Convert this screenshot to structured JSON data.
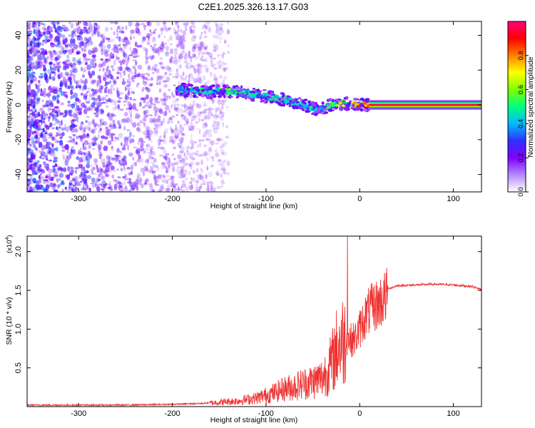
{
  "title": "C2E1.2025.326.13.17.G03",
  "colorbar": {
    "label": "Normalized spectral amplitude",
    "ticks": [
      {
        "v": 0.0,
        "label": "0.0"
      },
      {
        "v": 0.2,
        "label": "0.2"
      },
      {
        "v": 0.4,
        "label": "0.4"
      },
      {
        "v": 0.6,
        "label": "0.6"
      },
      {
        "v": 0.8,
        "label": "0.8"
      }
    ],
    "range": [
      0,
      1
    ],
    "colors": [
      "#ffffff",
      "#b388ff",
      "#8000ff",
      "#3030ff",
      "#00bbff",
      "#00ff80",
      "#80ff00",
      "#ffff00",
      "#ff8000",
      "#ff0000",
      "#ff0080"
    ]
  },
  "chart_data": [
    {
      "type": "heatmap",
      "xlabel": "Height of straight line (km)",
      "ylabel": "Frequency (Hz)",
      "xlim": [
        -355,
        130
      ],
      "ylim": [
        -50,
        48
      ],
      "xticks": [
        {
          "v": -300,
          "label": "-300"
        },
        {
          "v": -200,
          "label": "-200"
        },
        {
          "v": -100,
          "label": "-100"
        },
        {
          "v": 0,
          "label": "0"
        },
        {
          "v": 100,
          "label": "100"
        }
      ],
      "yticks": [
        {
          "v": -40,
          "label": "-40"
        },
        {
          "v": -20,
          "label": "-20"
        },
        {
          "v": 0,
          "label": "0"
        },
        {
          "v": 20,
          "label": "20"
        },
        {
          "v": 40,
          "label": "40"
        }
      ],
      "ridge": {
        "x": [
          -195,
          -180,
          -160,
          -140,
          -120,
          -100,
          -80,
          -60,
          -45,
          -30,
          -20,
          -10,
          0,
          10,
          130
        ],
        "y": [
          9,
          8,
          7.5,
          8,
          6.5,
          5,
          3,
          0,
          -3,
          0,
          1,
          0.5,
          0,
          0,
          0
        ],
        "amplitude": [
          0.45,
          0.5,
          0.5,
          0.55,
          0.45,
          0.45,
          0.5,
          0.45,
          0.4,
          0.5,
          0.6,
          0.7,
          0.75,
          0.9,
          0.95
        ]
      },
      "tone_band": {
        "x_start": 10,
        "x_end": 130,
        "frequency": 0,
        "amplitude": 0.95
      }
    },
    {
      "type": "line",
      "xlabel": "Height of straight line (km)",
      "ylabel": "SNR (10 * v/v)",
      "y_multiplier_label": "(x10",
      "y_multiplier_exp": "4",
      "y_multiplier_close": ")",
      "xlim": [
        -355,
        130
      ],
      "ylim": [
        0,
        2.2
      ],
      "xticks": [
        {
          "v": -300,
          "label": "-300"
        },
        {
          "v": -200,
          "label": "-200"
        },
        {
          "v": -100,
          "label": "-100"
        },
        {
          "v": 0,
          "label": "0"
        },
        {
          "v": 100,
          "label": "100"
        }
      ],
      "yticks": [
        {
          "v": 0.5,
          "label": "0.5"
        },
        {
          "v": 1.0,
          "label": "1.0"
        },
        {
          "v": 1.5,
          "label": "1.5"
        },
        {
          "v": 2.0,
          "label": "2.0"
        }
      ],
      "series": [
        {
          "color": "#ee3333",
          "x": [
            -355,
            -300,
            -250,
            -200,
            -170,
            -150,
            -130,
            -110,
            -100,
            -90,
            -80,
            -70,
            -60,
            -50,
            -40,
            -30,
            -25,
            -20,
            -15,
            -10,
            -5,
            0,
            5,
            10,
            20,
            30,
            40,
            60,
            80,
            100,
            120,
            130
          ],
          "y": [
            0.02,
            0.02,
            0.02,
            0.03,
            0.04,
            0.06,
            0.08,
            0.12,
            0.16,
            0.2,
            0.25,
            0.28,
            0.32,
            0.35,
            0.4,
            0.6,
            0.8,
            0.9,
            0.95,
            0.9,
            0.92,
            1.05,
            1.2,
            1.3,
            1.4,
            1.52,
            1.56,
            1.57,
            1.58,
            1.57,
            1.55,
            1.51
          ]
        }
      ],
      "peak": {
        "x": -13,
        "y": 2.2
      }
    }
  ]
}
